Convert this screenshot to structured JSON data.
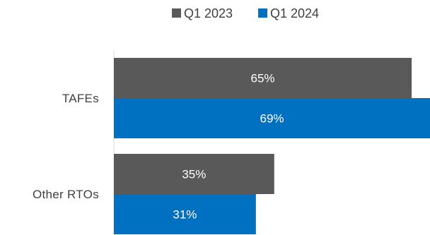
{
  "chart_data": {
    "type": "bar",
    "orientation": "horizontal",
    "categories": [
      "TAFEs",
      "Other RTOs"
    ],
    "series": [
      {
        "name": "Q1 2023",
        "color": "#595959",
        "values": [
          65,
          35
        ]
      },
      {
        "name": "Q1 2024",
        "color": "#0070c0",
        "values": [
          69,
          31
        ]
      }
    ],
    "value_suffix": "%",
    "xlim": [
      0,
      69
    ],
    "legend_position": "top",
    "grid": false,
    "title": "",
    "xlabel": "",
    "ylabel": ""
  }
}
